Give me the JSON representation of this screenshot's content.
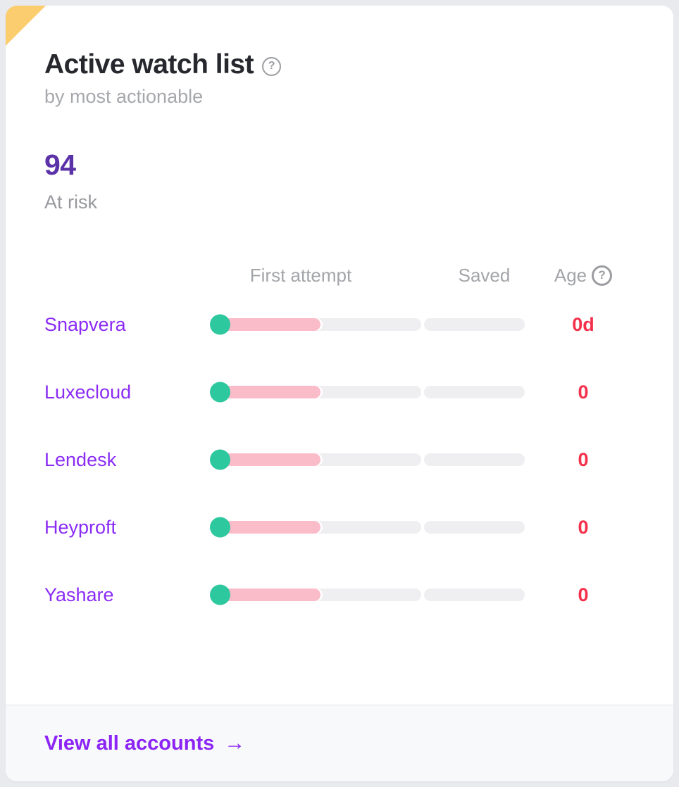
{
  "card": {
    "title": "Active watch list",
    "title_help": "?",
    "subtitle": "by most actionable",
    "stat": {
      "value": "94",
      "label": "At risk"
    },
    "table": {
      "headers": {
        "first_attempt": "First attempt",
        "saved": "Saved",
        "age": "Age",
        "age_help": "?"
      },
      "rows": [
        {
          "name": "Snapvera",
          "age": "0d",
          "first_attempt_pct": 52,
          "saved_pct": 0
        },
        {
          "name": "Luxecloud",
          "age": "0",
          "first_attempt_pct": 52,
          "saved_pct": 0
        },
        {
          "name": "Lendesk",
          "age": "0",
          "first_attempt_pct": 52,
          "saved_pct": 0
        },
        {
          "name": "Heyproft",
          "age": "0",
          "first_attempt_pct": 52,
          "saved_pct": 0
        },
        {
          "name": "Yashare",
          "age": "0",
          "first_attempt_pct": 52,
          "saved_pct": 0
        }
      ]
    },
    "footer": {
      "link": "View all accounts",
      "arrow": "→"
    }
  },
  "colors": {
    "page_background": "#e8eaee",
    "corner_accent": "#fbcd6f",
    "title_text": "#26282d",
    "muted_text": "#a3a5a9",
    "stat_purple": "#5b32a8",
    "account_link_purple": "#8b2cf5",
    "footer_link_purple": "#8b24f4",
    "age_red": "#f4304b",
    "dot_teal": "#2dc89e",
    "fill_pink": "#fbbcca",
    "track_gray": "#efeff1",
    "footer_background": "#f8f9fa"
  }
}
